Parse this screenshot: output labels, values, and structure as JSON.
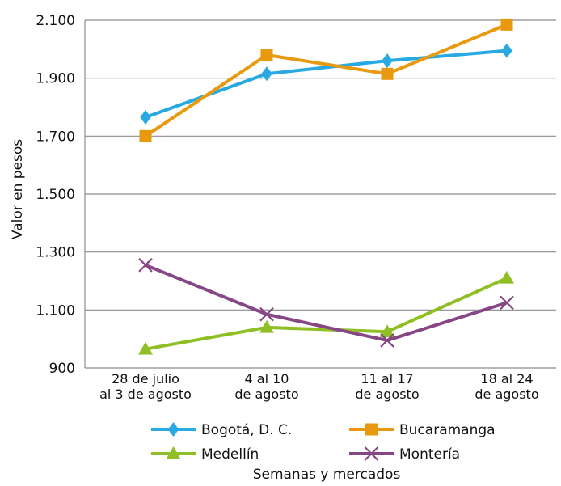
{
  "chart_data": {
    "type": "line",
    "title": "",
    "xlabel": "Semanas y mercados",
    "ylabel": "Valor en pesos",
    "ylim": [
      900,
      2100
    ],
    "yticks": [
      900,
      1100,
      1300,
      1500,
      1700,
      1900,
      2100
    ],
    "ytick_labels": [
      "900",
      "1.100",
      "1.300",
      "1.500",
      "1.700",
      "1.900",
      "2.100"
    ],
    "grid": "horizontal",
    "legend": "bottom",
    "categories": [
      [
        "28 de julio",
        "al 3 de agosto"
      ],
      [
        "4 al 10",
        "de agosto"
      ],
      [
        "11 al 17",
        "de agosto"
      ],
      [
        "18 al 24",
        "de agosto"
      ]
    ],
    "series": [
      {
        "name": "Bogotá, D. C.",
        "color": "#29a9e1",
        "marker": "diamond",
        "values": [
          1765,
          1915,
          1960,
          1995
        ]
      },
      {
        "name": "Bucaramanga",
        "color": "#e8990e",
        "marker": "square",
        "values": [
          1700,
          1980,
          1915,
          2085
        ]
      },
      {
        "name": "Medellín",
        "color": "#8fbf24",
        "marker": "triangle",
        "values": [
          965,
          1040,
          1025,
          1210
        ]
      },
      {
        "name": "Montería",
        "color": "#874785",
        "marker": "x",
        "values": [
          1255,
          1085,
          995,
          1125
        ]
      }
    ]
  }
}
